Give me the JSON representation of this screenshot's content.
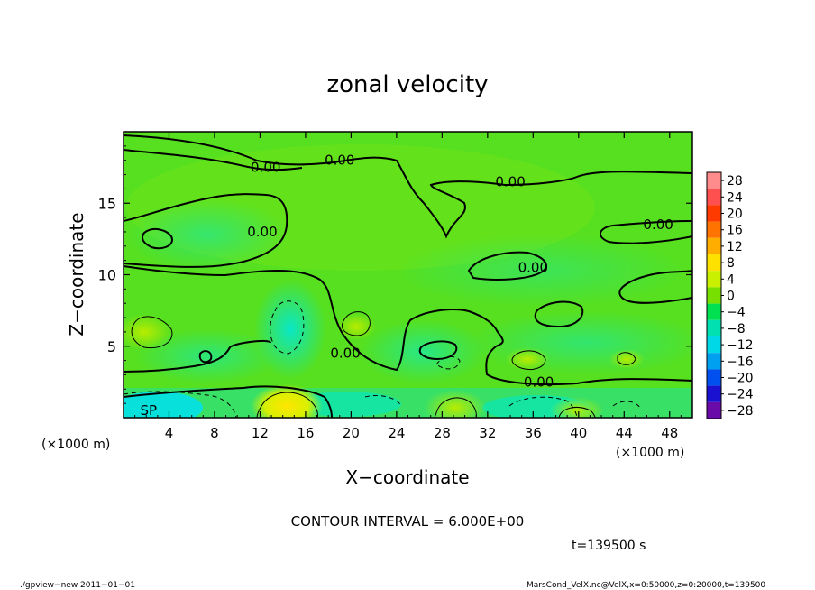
{
  "chart_data": {
    "type": "heatmap",
    "title": "zonal velocity",
    "xlabel": "X−coordinate",
    "ylabel": "Z−coordinate",
    "x_unit_left": "(×1000 m)",
    "x_unit_right": "(×1000 m)",
    "xlim": [
      0,
      50
    ],
    "ylim": [
      0,
      20
    ],
    "x_ticks": [
      "4",
      "8",
      "12",
      "16",
      "20",
      "24",
      "28",
      "32",
      "36",
      "40",
      "44",
      "48"
    ],
    "x_tick_values": [
      4,
      8,
      12,
      16,
      20,
      24,
      28,
      32,
      36,
      40,
      44,
      48
    ],
    "y_ticks": [
      "5",
      "10",
      "15"
    ],
    "y_tick_values": [
      5,
      10,
      15
    ],
    "contour_interval_text": "CONTOUR INTERVAL = 6.000E+00",
    "time_text": "t=139500 s",
    "contour_labels": [
      {
        "text": "0.00",
        "x": 12.5,
        "z": 17.5
      },
      {
        "text": "0.00",
        "x": 19.0,
        "z": 18.0
      },
      {
        "text": "0.00",
        "x": 34.0,
        "z": 16.5
      },
      {
        "text": "0.00",
        "x": 12.2,
        "z": 13.0
      },
      {
        "text": "0.00",
        "x": 47.0,
        "z": 13.5
      },
      {
        "text": "0.00",
        "x": 36.0,
        "z": 10.5
      },
      {
        "text": "0.00",
        "x": 19.5,
        "z": 4.5
      },
      {
        "text": "0.00",
        "x": 36.5,
        "z": 2.5
      },
      {
        "text": "SP",
        "x": 2.2,
        "z": 0.5
      }
    ],
    "colorbar": {
      "levels": [
        28,
        24,
        20,
        16,
        12,
        8,
        4,
        0,
        -4,
        -8,
        -12,
        -16,
        -20,
        -24,
        -28
      ],
      "labels": [
        "28",
        "24",
        "20",
        "16",
        "12",
        "8",
        "4",
        "0",
        "−4",
        "−8",
        "−12",
        "−16",
        "−20",
        "−24",
        "−28"
      ],
      "colors": [
        "#ff8c8c",
        "#ff5050",
        "#ff3a00",
        "#ff7400",
        "#ffae00",
        "#ffe100",
        "#c8f000",
        "#78e000",
        "#00e050",
        "#00e0b0",
        "#00d8e8",
        "#00a0f0",
        "#0050f0",
        "#1a10d0",
        "#6a0aa8"
      ]
    }
  },
  "footer": {
    "left": "./gpview−new   2011−01−01",
    "right": "MarsCond_VelX.nc@VelX,x=0:50000,z=0:20000,t=139500"
  }
}
